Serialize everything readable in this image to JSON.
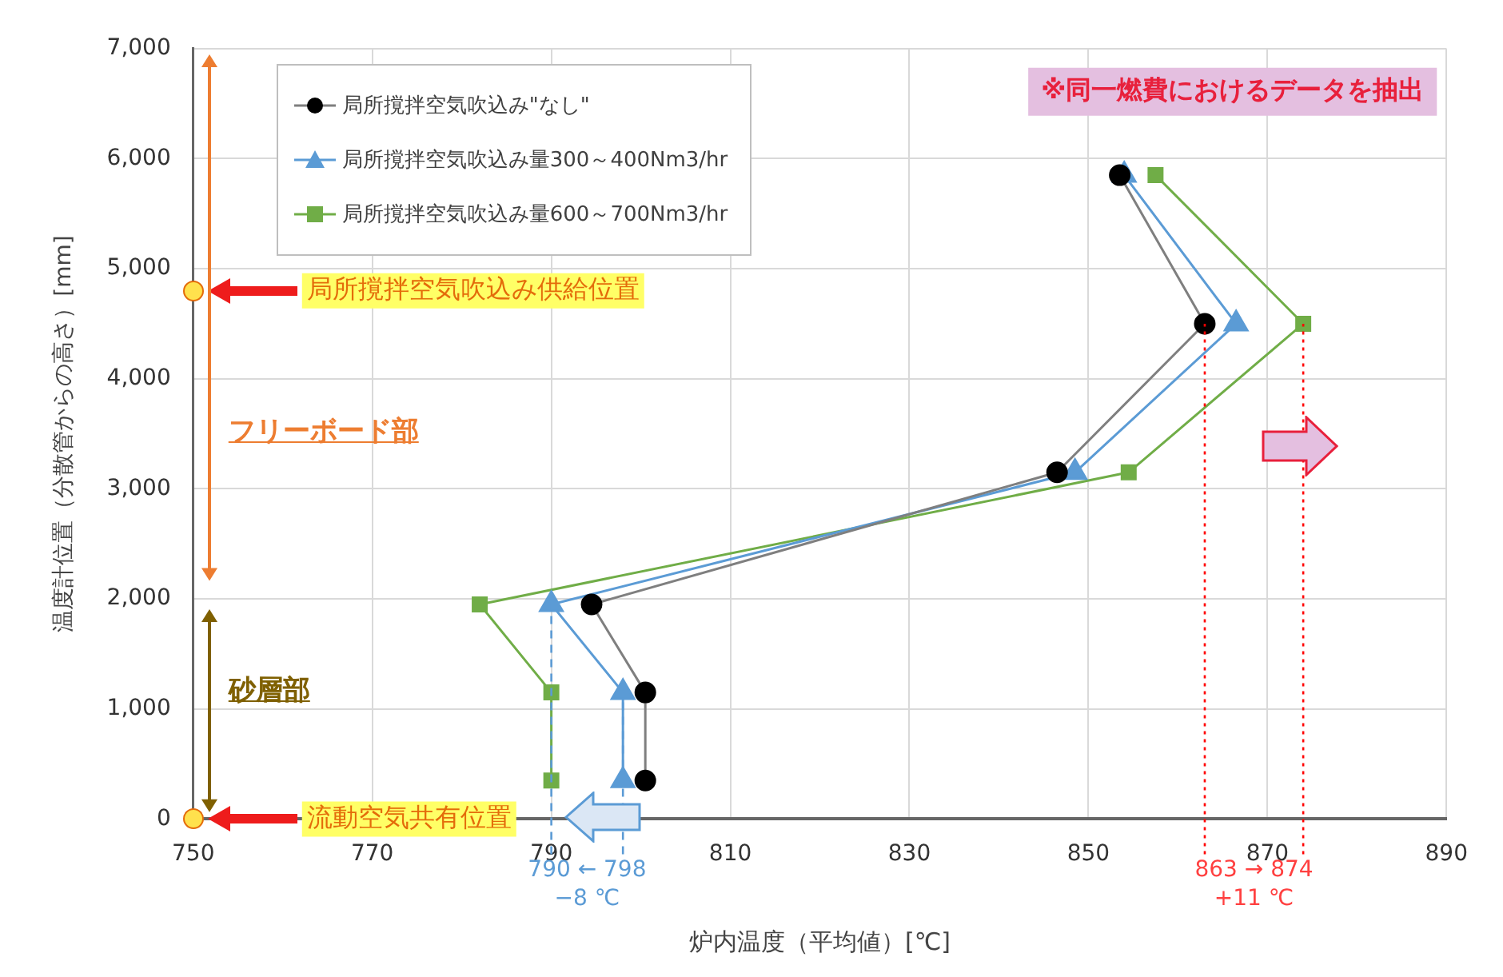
{
  "chart_data": {
    "type": "line",
    "xlabel": "炉内温度（平均値）[℃]",
    "ylabel": "温度計位置（分散管からの高さ）[mm]",
    "series": [
      {
        "name": "局所撹拌空気吹込み\"なし\"",
        "color": "#000000",
        "marker": "circle",
        "x": [
          800.5,
          800.5,
          794.5,
          846.5,
          863,
          853.5
        ],
        "values": [
          350,
          1150,
          1950,
          3150,
          4500,
          5850
        ]
      },
      {
        "name": "局所撹拌空気吹込み量300～400Nm3/hr",
        "color": "#5b9bd5",
        "marker": "triangle",
        "x": [
          798,
          798,
          790,
          848.5,
          866.5,
          854
        ],
        "values": [
          350,
          1150,
          1950,
          3150,
          4500,
          5850
        ]
      },
      {
        "name": "局所撹拌空気吹込み量600～700Nm3/hr",
        "color": "#70ad47",
        "marker": "square",
        "x": [
          790,
          790,
          782,
          854.5,
          874,
          857.5
        ],
        "values": [
          350,
          1150,
          1950,
          3150,
          4500,
          5850
        ]
      }
    ],
    "xlim": [
      750,
      890
    ],
    "xticks": [
      750,
      770,
      790,
      810,
      830,
      850,
      870,
      890
    ],
    "ylim": [
      0,
      7000
    ],
    "yticks": [
      0,
      {
        "value": 1000,
        "label": "1,000"
      },
      {
        "value": 2000,
        "label": "2,000"
      },
      {
        "value": 3000,
        "label": "3,000"
      },
      {
        "value": 4000,
        "label": "4,000"
      },
      {
        "value": 5000,
        "label": "5,000"
      },
      {
        "value": 6000,
        "label": "6,000"
      },
      {
        "value": 7000,
        "label": "7,000"
      }
    ],
    "grid": true,
    "legend": "top left",
    "line_style": "solid",
    "ref_lines": [
      {
        "axis": "x",
        "value": 790,
        "color": "#5b9bd5",
        "line_style": "dashed"
      },
      {
        "axis": "x",
        "value": 798,
        "color": "#5b9bd5",
        "line_style": "dashed"
      },
      {
        "axis": "x",
        "value": 863,
        "color": "#ff0000",
        "line_style": "dotted"
      },
      {
        "axis": "x",
        "value": 874,
        "color": "#ff0000",
        "line_style": "dotted"
      }
    ],
    "annotations": [
      "※同一燃費におけるデータを抽出",
      "局所撹拌空気吹込み供給位置",
      "流動空気共有位置",
      "790 ← 798",
      "−8 ℃",
      "863 → 874",
      "+11 ℃",
      "フリーボード部",
      "砂層部"
    ]
  }
}
